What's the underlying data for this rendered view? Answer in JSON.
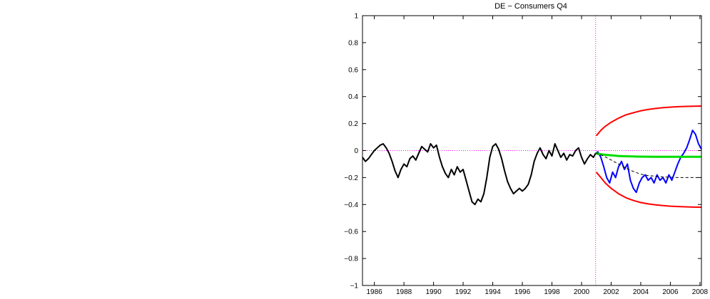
{
  "chart_data": {
    "type": "line",
    "title": "DE − Consumers Q4",
    "xlabel": "",
    "ylabel": "",
    "xlim": [
      1985.2,
      2008.1
    ],
    "ylim": [
      -1,
      1
    ],
    "grid": false,
    "xticks": [
      1986,
      1988,
      1990,
      1992,
      1994,
      1996,
      1998,
      2000,
      2002,
      2004,
      2006,
      2008
    ],
    "yticks": [
      -1,
      -0.8,
      -0.6,
      -0.4,
      -0.2,
      0,
      0.2,
      0.4,
      0.6,
      0.8,
      1
    ],
    "ytick_labels": [
      "−1",
      "−0.8",
      "−0.6",
      "−0.4",
      "−0.2",
      "0",
      "0.2",
      "0.4",
      "0.6",
      "0.8",
      "1"
    ],
    "reference_lines": {
      "zero_line": {
        "y": 0,
        "color": "#ff00ff",
        "style": "dotted"
      },
      "forecast_origin": {
        "x": 2000.95,
        "color": "#ff00ff",
        "style": "dotted"
      }
    },
    "series": [
      {
        "color": "#000000",
        "style": "solid",
        "width": 2,
        "x": [
          1985.2,
          1985.4,
          1985.6,
          1985.8,
          1986.0,
          1986.2,
          1986.4,
          1986.6,
          1986.8,
          1987.0,
          1987.2,
          1987.4,
          1987.6,
          1987.8,
          1988.0,
          1988.2,
          1988.4,
          1988.6,
          1988.8,
          1989.0,
          1989.2,
          1989.4,
          1989.6,
          1989.8,
          1990.0,
          1990.2,
          1990.4,
          1990.6,
          1990.8,
          1991.0,
          1991.2,
          1991.4,
          1991.6,
          1991.8,
          1992.0,
          1992.2,
          1992.4,
          1992.6,
          1992.8,
          1993.0,
          1993.2,
          1993.4,
          1993.6,
          1993.8,
          1994.0,
          1994.2,
          1994.4,
          1994.6,
          1994.8,
          1995.0,
          1995.2,
          1995.4,
          1995.6,
          1995.8,
          1996.0,
          1996.2,
          1996.4,
          1996.6,
          1996.8,
          1997.0,
          1997.2,
          1997.4,
          1997.6,
          1997.8,
          1998.0,
          1998.2,
          1998.4,
          1998.6,
          1998.8,
          1999.0,
          1999.2,
          1999.4,
          1999.6,
          1999.8,
          2000.0,
          2000.2,
          2000.4,
          2000.6,
          2000.8,
          2000.95
        ],
        "y": [
          -0.05,
          -0.08,
          -0.06,
          -0.03,
          0.0,
          0.02,
          0.04,
          0.05,
          0.02,
          -0.02,
          -0.08,
          -0.15,
          -0.2,
          -0.14,
          -0.1,
          -0.12,
          -0.06,
          -0.04,
          -0.07,
          -0.02,
          0.03,
          0.01,
          -0.01,
          0.05,
          0.02,
          0.04,
          -0.05,
          -0.12,
          -0.17,
          -0.2,
          -0.14,
          -0.18,
          -0.12,
          -0.16,
          -0.14,
          -0.22,
          -0.3,
          -0.38,
          -0.4,
          -0.36,
          -0.38,
          -0.32,
          -0.2,
          -0.05,
          0.03,
          0.05,
          0.01,
          -0.06,
          -0.15,
          -0.23,
          -0.28,
          -0.32,
          -0.3,
          -0.28,
          -0.3,
          -0.28,
          -0.25,
          -0.18,
          -0.08,
          -0.02,
          0.02,
          -0.03,
          -0.06,
          0.0,
          -0.04,
          0.05,
          0.0,
          -0.05,
          -0.02,
          -0.07,
          -0.03,
          -0.04,
          0.0,
          0.02,
          -0.05,
          -0.1,
          -0.06,
          -0.03,
          -0.05,
          -0.02
        ]
      },
      {
        "color": "#0000ff",
        "style": "solid",
        "width": 2,
        "x": [
          2000.95,
          2001.1,
          2001.3,
          2001.5,
          2001.7,
          2001.9,
          2002.1,
          2002.3,
          2002.5,
          2002.7,
          2002.9,
          2003.1,
          2003.3,
          2003.5,
          2003.7,
          2003.9,
          2004.1,
          2004.3,
          2004.5,
          2004.7,
          2004.9,
          2005.1,
          2005.3,
          2005.5,
          2005.7,
          2005.9,
          2006.1,
          2006.3,
          2006.5,
          2006.7,
          2006.9,
          2007.1,
          2007.3,
          2007.5,
          2007.7,
          2007.9,
          2008.1
        ],
        "y": [
          -0.02,
          -0.01,
          -0.05,
          -0.12,
          -0.2,
          -0.24,
          -0.16,
          -0.2,
          -0.12,
          -0.08,
          -0.14,
          -0.1,
          -0.22,
          -0.28,
          -0.31,
          -0.24,
          -0.2,
          -0.18,
          -0.22,
          -0.2,
          -0.24,
          -0.18,
          -0.22,
          -0.2,
          -0.24,
          -0.18,
          -0.22,
          -0.16,
          -0.1,
          -0.05,
          -0.02,
          0.02,
          0.08,
          0.15,
          0.12,
          0.05,
          0.01
        ]
      },
      {
        "color": "#00dd00",
        "style": "solid",
        "width": 3,
        "x": [
          2000.95,
          2001.5,
          2002.0,
          2002.5,
          2003.0,
          2003.5,
          2004.0,
          2005.0,
          2006.0,
          2007.0,
          2008.1
        ],
        "y": [
          -0.02,
          -0.03,
          -0.035,
          -0.04,
          -0.042,
          -0.044,
          -0.045,
          -0.046,
          -0.046,
          -0.046,
          -0.046
        ]
      },
      {
        "color": "#ff0000",
        "style": "solid",
        "width": 2,
        "x": [
          2001.0,
          2001.3,
          2001.6,
          2002.0,
          2002.5,
          2003.0,
          2003.5,
          2004.0,
          2004.5,
          2005.0,
          2005.5,
          2006.0,
          2006.5,
          2007.0,
          2007.5,
          2008.1
        ],
        "y": [
          0.11,
          0.15,
          0.18,
          0.21,
          0.24,
          0.265,
          0.28,
          0.295,
          0.305,
          0.312,
          0.318,
          0.322,
          0.325,
          0.327,
          0.329,
          0.33
        ]
      },
      {
        "color": "#ff0000",
        "style": "solid",
        "width": 2,
        "x": [
          2001.0,
          2001.3,
          2001.6,
          2002.0,
          2002.5,
          2003.0,
          2003.5,
          2004.0,
          2004.5,
          2005.0,
          2005.5,
          2006.0,
          2006.5,
          2007.0,
          2007.5,
          2008.1
        ],
        "y": [
          -0.16,
          -0.2,
          -0.24,
          -0.28,
          -0.32,
          -0.35,
          -0.37,
          -0.385,
          -0.395,
          -0.402,
          -0.408,
          -0.412,
          -0.415,
          -0.417,
          -0.419,
          -0.42
        ]
      },
      {
        "color": "#000000",
        "style": "dashed",
        "width": 1,
        "x": [
          2000.95,
          2001.5,
          2002.0,
          2002.5,
          2003.0,
          2003.5,
          2004.0,
          2004.5,
          2005.0,
          2005.5,
          2006.0,
          2006.5,
          2007.0,
          2007.5,
          2008.1
        ],
        "y": [
          -0.02,
          -0.04,
          -0.07,
          -0.1,
          -0.13,
          -0.155,
          -0.175,
          -0.185,
          -0.19,
          -0.195,
          -0.198,
          -0.2,
          -0.2,
          -0.2,
          -0.2
        ]
      }
    ]
  }
}
